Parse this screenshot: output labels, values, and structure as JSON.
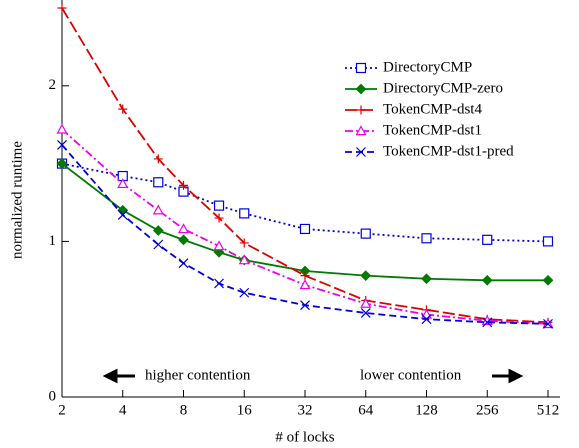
{
  "chart_data": {
    "type": "line",
    "x_label": "# of locks",
    "y_label": "normalized runtime",
    "x": [
      2,
      4,
      6,
      8,
      12,
      16,
      32,
      64,
      128,
      256,
      512
    ],
    "xscale": "log2",
    "xlim": [
      2,
      512
    ],
    "xticks": [
      2,
      4,
      8,
      16,
      32,
      64,
      128,
      256,
      512
    ],
    "ylim": [
      0,
      2.5
    ],
    "yticks": [
      0,
      1,
      2
    ],
    "legend": "upper right",
    "series": [
      {
        "name": "DirectoryCMP",
        "color": "#0000dd",
        "dash": "2,3",
        "marker": "square",
        "values": [
          1.5,
          1.42,
          1.38,
          1.32,
          1.23,
          1.18,
          1.08,
          1.05,
          1.02,
          1.01,
          1.0
        ]
      },
      {
        "name": "DirectoryCMP-zero",
        "color": "#007a00",
        "dash": "none",
        "marker": "diamond",
        "values": [
          1.5,
          1.2,
          1.07,
          1.01,
          0.93,
          0.88,
          0.81,
          0.78,
          0.76,
          0.75,
          0.75
        ]
      },
      {
        "name": "TokenCMP-dst4",
        "color": "#dd0000",
        "dash": "12,4",
        "marker": "plus",
        "values": [
          2.5,
          1.85,
          1.53,
          1.36,
          1.15,
          0.99,
          0.78,
          0.62,
          0.56,
          0.5,
          0.48
        ]
      },
      {
        "name": "TokenCMP-dst1",
        "color": "#ee00ee",
        "dash": "8,3,2,3",
        "marker": "triangle",
        "values": [
          1.72,
          1.37,
          1.2,
          1.08,
          0.97,
          0.88,
          0.72,
          0.6,
          0.53,
          0.49,
          0.47
        ]
      },
      {
        "name": "TokenCMP-dst1-pred",
        "color": "#0000dd",
        "dash": "7,4",
        "marker": "cross",
        "values": [
          1.62,
          1.17,
          0.98,
          0.86,
          0.73,
          0.67,
          0.59,
          0.54,
          0.5,
          0.48,
          0.47
        ]
      }
    ],
    "annotations": [
      "higher contention",
      "lower contention"
    ]
  }
}
